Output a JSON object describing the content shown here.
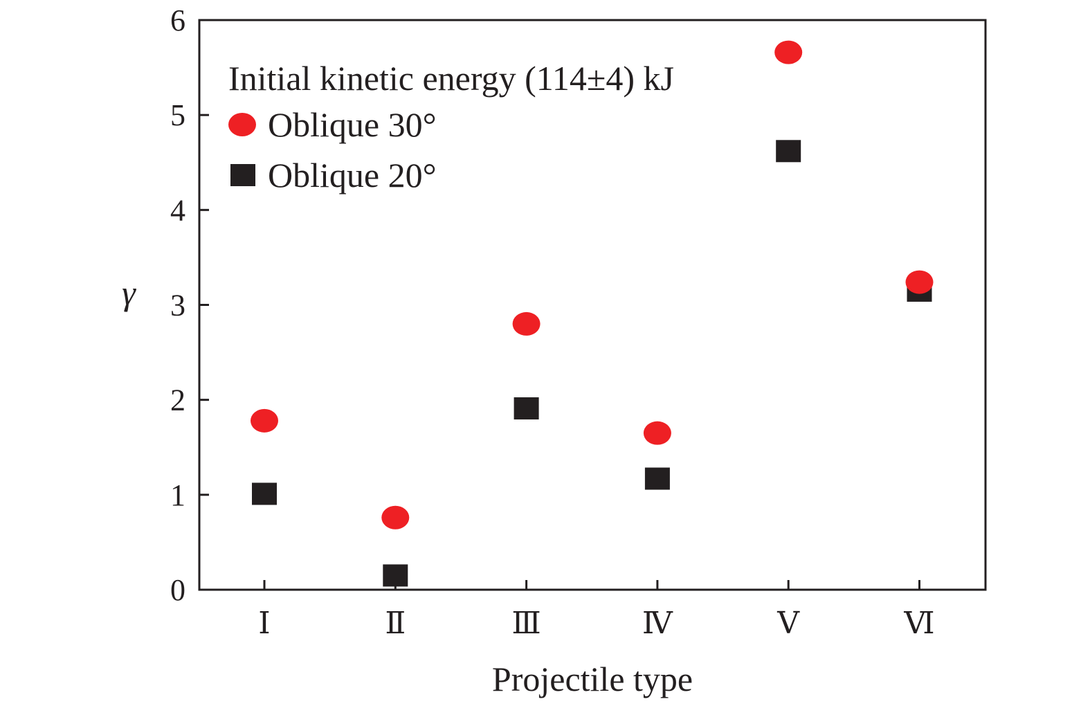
{
  "chart_data": {
    "type": "scatter",
    "categories": [
      "Ⅰ",
      "Ⅱ",
      "Ⅲ",
      "Ⅳ",
      "Ⅴ",
      "Ⅵ"
    ],
    "series": [
      {
        "name": "Oblique 30°",
        "marker": "circle",
        "color": "#ee2024",
        "values": [
          1.78,
          0.76,
          2.8,
          1.65,
          5.66,
          3.24
        ]
      },
      {
        "name": "Oblique 20°",
        "marker": "square",
        "color": "#231f20",
        "values": [
          1.01,
          0.15,
          1.91,
          1.17,
          4.62,
          3.15
        ]
      }
    ],
    "legend_title": "Initial kinetic energy (114±4) kJ",
    "xlabel": "Projectile type",
    "ylabel": "γ",
    "ylim": [
      0,
      6
    ],
    "yticks": [
      "0",
      "1",
      "2",
      "3",
      "4",
      "5",
      "6"
    ],
    "grid": false,
    "legend_position": "top-left"
  }
}
